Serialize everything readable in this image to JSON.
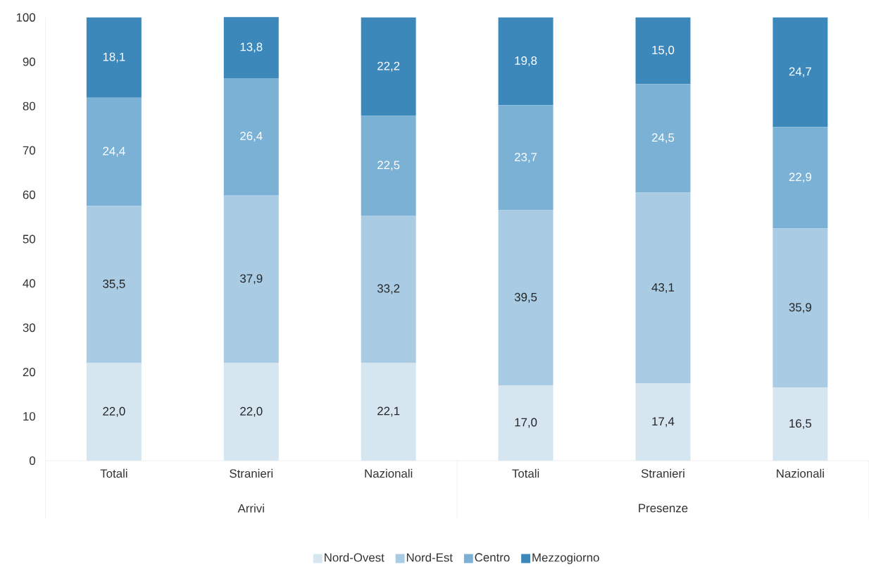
{
  "chart_data": {
    "type": "bar",
    "stacked": true,
    "categories": [
      "Totali",
      "Stranieri",
      "Nazionali",
      "Totali",
      "Stranieri",
      "Nazionali"
    ],
    "annotations": [
      "Arrivi",
      "Presenze"
    ],
    "series": [
      {
        "name": "Nord-Ovest",
        "color": "#d6e6f1",
        "values": [
          22.0,
          22.0,
          22.1,
          17.0,
          17.4,
          16.5
        ],
        "value_labels": [
          "22,0",
          "22,0",
          "22,1",
          "17,0",
          "17,4",
          "16,5"
        ]
      },
      {
        "name": "Nord-Est",
        "color": "#a9cbe3",
        "values": [
          35.5,
          37.9,
          33.2,
          39.5,
          43.1,
          35.9
        ],
        "value_labels": [
          "35,5",
          "37,9",
          "33,2",
          "39,5",
          "43,1",
          "35,9"
        ]
      },
      {
        "name": "Centro",
        "color": "#7ab1d5",
        "values": [
          24.4,
          26.4,
          22.5,
          23.7,
          24.5,
          22.9
        ],
        "value_labels": [
          "24,4",
          "26,4",
          "22,5",
          "23,7",
          "24,5",
          "22,9"
        ]
      },
      {
        "name": "Mezzogiorno",
        "color": "#3d88bb",
        "values": [
          18.1,
          13.8,
          22.2,
          19.8,
          15.0,
          24.7
        ],
        "value_labels": [
          "18,1",
          "13,8",
          "22,2",
          "19,8",
          "15,0",
          "24,7"
        ]
      }
    ],
    "ylim": [
      0,
      100
    ],
    "yticks": [
      0,
      10,
      20,
      30,
      40,
      50,
      60,
      70,
      80,
      90,
      100
    ],
    "legend": "bottom"
  }
}
